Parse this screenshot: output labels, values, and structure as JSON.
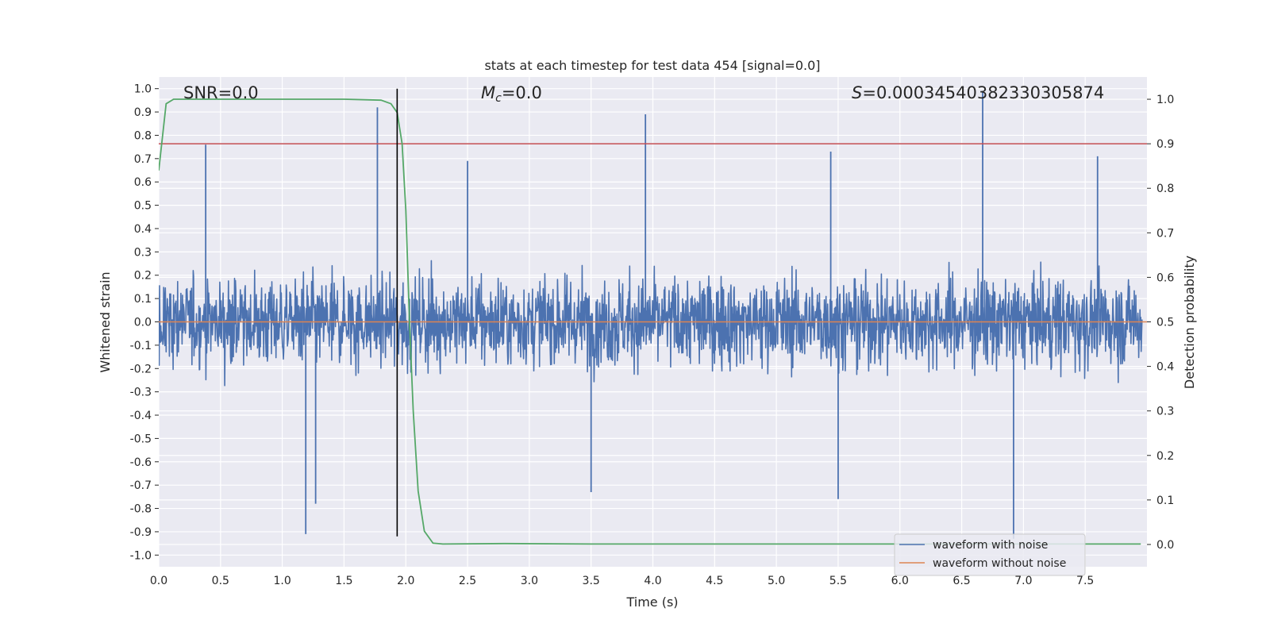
{
  "chart_data": {
    "type": "line",
    "title": "stats at each timestep for test data 454 [signal=0.0]",
    "xlabel": "Time (s)",
    "ylabel": "Whitened strain",
    "y2label": "Detection probability",
    "xlim": [
      0.0,
      8.0
    ],
    "ylim": [
      -1.05,
      1.05
    ],
    "y2lim": [
      -0.05,
      1.05
    ],
    "x_ticks": [
      "0.0",
      "0.5",
      "1.0",
      "1.5",
      "2.0",
      "2.5",
      "3.0",
      "3.5",
      "4.0",
      "4.5",
      "5.0",
      "5.5",
      "6.0",
      "6.5",
      "7.0",
      "7.5"
    ],
    "y_ticks": [
      "-1.0",
      "-0.9",
      "-0.8",
      "-0.7",
      "-0.6",
      "-0.5",
      "-0.4",
      "-0.3",
      "-0.2",
      "-0.1",
      "0.0",
      "0.1",
      "0.2",
      "0.3",
      "0.4",
      "0.5",
      "0.6",
      "0.7",
      "0.8",
      "0.9",
      "1.0"
    ],
    "y2_ticks": [
      "0.0",
      "0.1",
      "0.2",
      "0.3",
      "0.4",
      "0.5",
      "0.6",
      "0.7",
      "0.8",
      "0.9",
      "1.0"
    ],
    "grid": true,
    "legend_position": "bottom-right",
    "annotations": {
      "snr": "SNR=0.0",
      "mc_symbol": "M",
      "mc_sub": "c",
      "mc_value": "=0.0",
      "s_symbol": "S",
      "s_value": "=0.00034540382330305874"
    },
    "series": [
      {
        "name": "waveform with noise",
        "color": "#4c72b0",
        "kind": "noise",
        "envelope_typical": 0.4,
        "spikes": [
          {
            "x": 0.38,
            "y": 0.76
          },
          {
            "x": 1.77,
            "y": 0.92
          },
          {
            "x": 3.94,
            "y": 0.89
          },
          {
            "x": 6.67,
            "y": 0.99
          },
          {
            "x": 1.19,
            "y": -0.91
          },
          {
            "x": 1.27,
            "y": -0.78
          },
          {
            "x": 3.5,
            "y": -0.73
          },
          {
            "x": 5.5,
            "y": -0.76
          },
          {
            "x": 6.92,
            "y": -0.93
          },
          {
            "x": 5.44,
            "y": 0.73
          },
          {
            "x": 7.6,
            "y": 0.71
          },
          {
            "x": 2.5,
            "y": 0.69
          }
        ]
      },
      {
        "name": "waveform without noise",
        "color": "#dd8452",
        "kind": "flat",
        "y": 0.0
      },
      {
        "name": "",
        "color": "#55a868",
        "kind": "probability",
        "axis": "right",
        "x": [
          0.0,
          0.06,
          0.12,
          0.2,
          0.5,
          1.0,
          1.5,
          1.8,
          1.88,
          1.93,
          1.97,
          2.0,
          2.03,
          2.06,
          2.1,
          2.15,
          2.22,
          2.3,
          2.8,
          3.5,
          5.0,
          6.0,
          7.0,
          7.95
        ],
        "y": [
          0.84,
          0.99,
          1.0,
          1.0,
          1.0,
          1.0,
          1.0,
          0.998,
          0.99,
          0.97,
          0.9,
          0.75,
          0.5,
          0.3,
          0.12,
          0.03,
          0.003,
          0.001,
          0.002,
          0.001,
          0.001,
          0.001,
          0.001,
          0.001
        ]
      }
    ],
    "threshold": {
      "axis": "right",
      "y": 0.9,
      "color": "#c44e52"
    },
    "marker": {
      "x": 1.93,
      "color": "#000000"
    }
  }
}
